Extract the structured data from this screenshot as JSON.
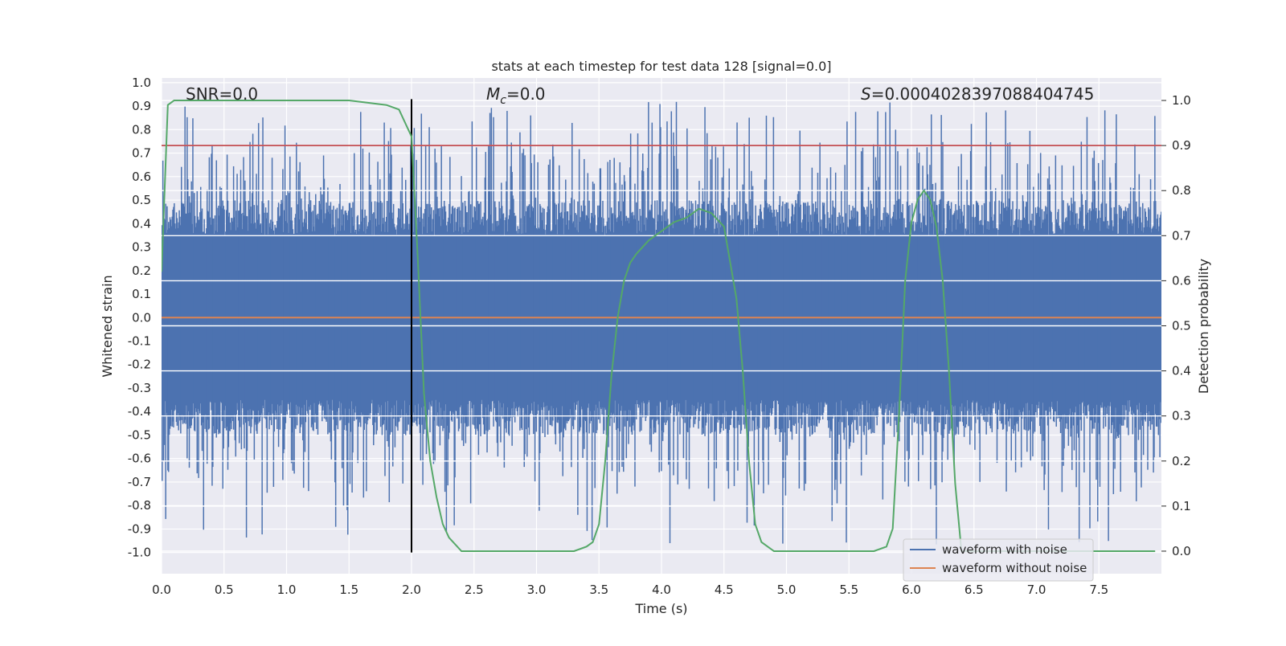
{
  "chart_data": {
    "type": "line",
    "title": "stats at each timestep for test data 128 [signal=0.0]",
    "xlabel": "Time (s)",
    "ylabel": "Whitened strain",
    "y2label": "Detection probability",
    "xlim": [
      0.0,
      8.0
    ],
    "ylim": [
      -1.09,
      1.02
    ],
    "y2lim": [
      -0.05,
      1.05
    ],
    "xticks": [
      "0.0",
      "0.5",
      "1.0",
      "1.5",
      "2.0",
      "2.5",
      "3.0",
      "3.5",
      "4.0",
      "4.5",
      "5.0",
      "5.5",
      "6.0",
      "6.5",
      "7.0",
      "7.5"
    ],
    "yticks": [
      "1.0",
      "0.9",
      "0.8",
      "0.7",
      "0.6",
      "0.5",
      "0.4",
      "0.3",
      "0.2",
      "0.1",
      "0.0",
      "-0.1",
      "-0.2",
      "-0.3",
      "-0.4",
      "-0.5",
      "-0.6",
      "-0.7",
      "-0.8",
      "-0.9",
      "-1.0"
    ],
    "y2ticks": [
      "1.0",
      "0.9",
      "0.8",
      "0.7",
      "0.6",
      "0.5",
      "0.4",
      "0.3",
      "0.2",
      "0.1",
      "0.0"
    ],
    "grid": true,
    "legend_position": "bottom-right",
    "annotations": {
      "snr": "SNR=0.0",
      "mc_symbol": "M",
      "mc_sub": "c",
      "mc_value": "=0.0",
      "s_symbol": "S",
      "s_value": "=0.0004028397088404745"
    },
    "threshold_line": {
      "y2": 0.9,
      "color": "#c44e52"
    },
    "vertical_marker": {
      "x": 2.0,
      "y_range": [
        -1.0,
        0.93
      ],
      "color": "#000000"
    },
    "series": [
      {
        "name": "waveform with noise",
        "color": "#4c72b0",
        "kind": "noise",
        "typical_amplitude": 0.35,
        "peak_amplitude": 0.92
      },
      {
        "name": "waveform without noise",
        "color": "#dd8452",
        "kind": "flat",
        "value": 0.0
      },
      {
        "name": "detection probability",
        "color": "#55a868",
        "axis": "right",
        "x": [
          0.0,
          0.05,
          0.1,
          0.2,
          0.5,
          1.0,
          1.5,
          1.8,
          1.9,
          2.0,
          2.05,
          2.1,
          2.15,
          2.2,
          2.25,
          2.3,
          2.4,
          2.6,
          3.0,
          3.3,
          3.4,
          3.45,
          3.5,
          3.55,
          3.6,
          3.65,
          3.7,
          3.75,
          3.8,
          3.9,
          4.0,
          4.1,
          4.2,
          4.3,
          4.4,
          4.5,
          4.6,
          4.65,
          4.7,
          4.75,
          4.8,
          4.9,
          5.0,
          5.5,
          5.7,
          5.8,
          5.85,
          5.9,
          5.95,
          6.0,
          6.05,
          6.1,
          6.15,
          6.2,
          6.25,
          6.3,
          6.35,
          6.4,
          6.5,
          7.0,
          7.5,
          7.95
        ],
        "y": [
          0.62,
          0.99,
          1.0,
          1.0,
          1.0,
          1.0,
          1.0,
          0.99,
          0.98,
          0.92,
          0.65,
          0.35,
          0.2,
          0.12,
          0.06,
          0.03,
          0.0,
          0.0,
          0.0,
          0.0,
          0.01,
          0.02,
          0.06,
          0.2,
          0.39,
          0.52,
          0.6,
          0.64,
          0.66,
          0.69,
          0.71,
          0.73,
          0.74,
          0.76,
          0.75,
          0.72,
          0.56,
          0.4,
          0.2,
          0.06,
          0.02,
          0.0,
          0.0,
          0.0,
          0.0,
          0.01,
          0.05,
          0.3,
          0.6,
          0.73,
          0.78,
          0.8,
          0.78,
          0.72,
          0.6,
          0.4,
          0.15,
          0.0,
          0.0,
          0.0,
          0.0,
          0.0
        ]
      }
    ]
  }
}
